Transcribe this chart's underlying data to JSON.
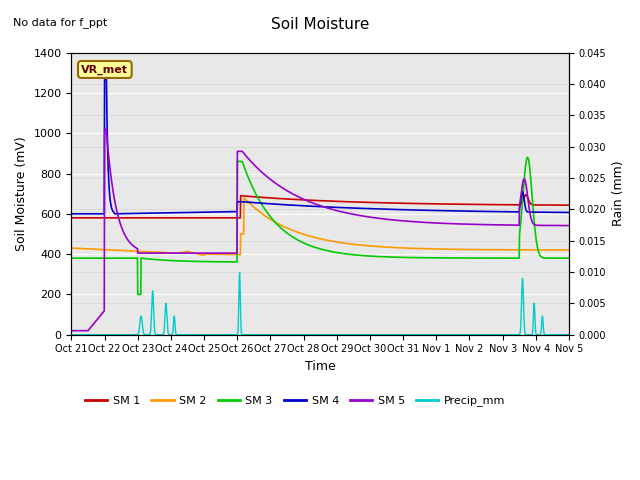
{
  "title": "Soil Moisture",
  "subtitle": "No data for f_ppt",
  "xlabel": "Time",
  "ylabel_left": "Soil Moisture (mV)",
  "ylabel_right": "Rain (mm)",
  "ylim_left": [
    0,
    1400
  ],
  "ylim_right": [
    0,
    0.045
  ],
  "yticks_left": [
    0,
    200,
    400,
    600,
    800,
    1000,
    1200,
    1400
  ],
  "yticks_right": [
    0.0,
    0.005,
    0.01,
    0.015,
    0.02,
    0.025,
    0.03,
    0.035,
    0.04,
    0.045
  ],
  "x_labels": [
    "Oct 21",
    "Oct 22",
    "Oct 23",
    "Oct 24",
    "Oct 25",
    "Oct 26",
    "Oct 27",
    "Oct 28",
    "Oct 29",
    "Oct 30",
    "Oct 31",
    "Nov 1",
    "Nov 2",
    "Nov 3",
    "Nov 4",
    "Nov 5"
  ],
  "bg_color": "#e8e8e8",
  "fig_bg_color": "#ffffff",
  "colors": {
    "SM1": "#cc0000",
    "SM2": "#ff9900",
    "SM3": "#00cc00",
    "SM4": "#0000cc",
    "SM5": "#9900cc",
    "Precip": "#00cccc"
  },
  "annotation_box": {
    "text": "VR_met",
    "facecolor": "#ffff99",
    "edgecolor": "#996600",
    "textcolor": "#660000"
  }
}
